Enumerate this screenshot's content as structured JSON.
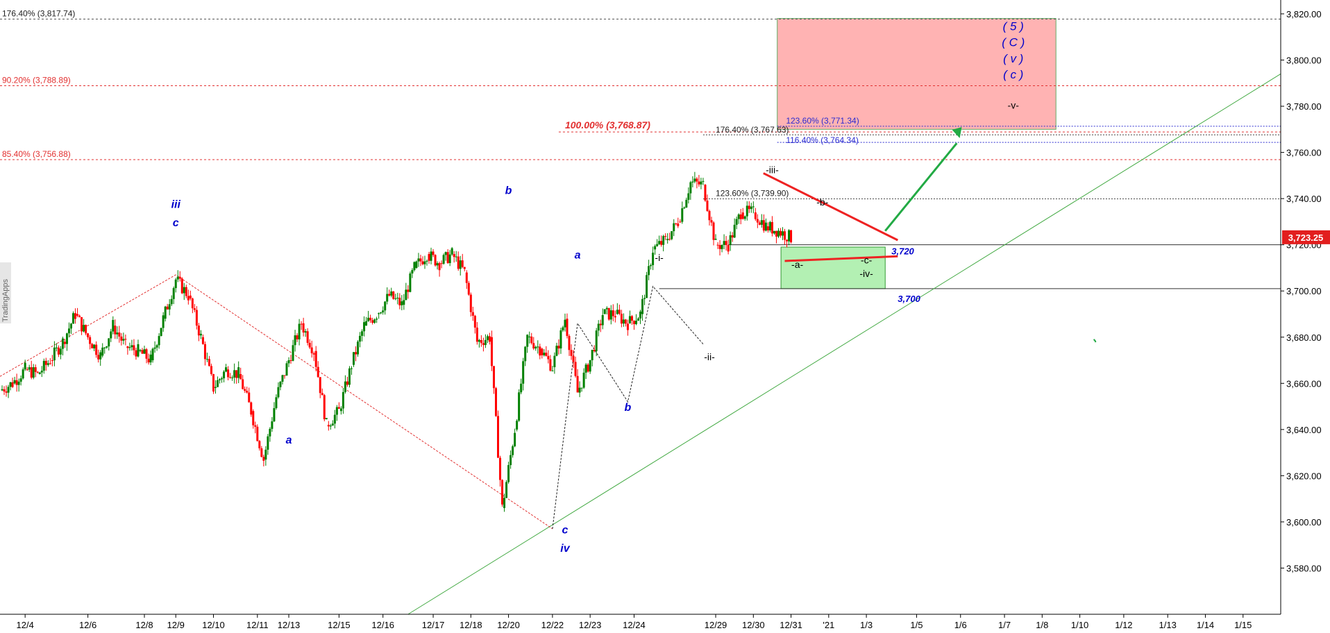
{
  "chart_data": {
    "type": "candlestick",
    "title": "",
    "xlabel": "",
    "ylabel": "",
    "ylim": [
      3560,
      3826
    ],
    "y_ticks": [
      "3,580.00",
      "3,600.00",
      "3,620.00",
      "3,640.00",
      "3,660.00",
      "3,680.00",
      "3,700.00",
      "3,720.00",
      "3,740.00",
      "3,760.00",
      "3,780.00",
      "3,800.00",
      "3,820.00"
    ],
    "y_tick_values": [
      3580,
      3600,
      3620,
      3640,
      3660,
      3680,
      3700,
      3720,
      3740,
      3760,
      3780,
      3800,
      3820
    ],
    "x_ticks": [
      "12/4",
      "12/6",
      "12/8",
      "12/9",
      "12/10",
      "12/11",
      "12/13",
      "12/15",
      "12/16",
      "12/17",
      "12/18",
      "12/20",
      "12/22",
      "12/23",
      "12/24",
      "12/29",
      "12/30",
      "12/31",
      "'21",
      "1/3",
      "1/5",
      "1/6",
      "1/7",
      "1/8",
      "1/10",
      "1/12",
      "1/13",
      "1/14",
      "1/15"
    ],
    "x_tick_slots": [
      2,
      7,
      11.5,
      14,
      17,
      20.5,
      23,
      27,
      30.5,
      34.5,
      37.5,
      40.5,
      44,
      47,
      50.5,
      57,
      60,
      63,
      66,
      69,
      73,
      76.5,
      80,
      83,
      86,
      89.5,
      93,
      96,
      99
    ],
    "x_max": 102,
    "price_path": [
      [
        0,
        3657
      ],
      [
        1,
        3660
      ],
      [
        2,
        3666
      ],
      [
        3,
        3664
      ],
      [
        4,
        3670
      ],
      [
        5,
        3678
      ],
      [
        6,
        3690
      ],
      [
        7,
        3680
      ],
      [
        8,
        3672
      ],
      [
        9,
        3685
      ],
      [
        10,
        3676
      ],
      [
        11,
        3674
      ],
      [
        12,
        3670
      ],
      [
        13,
        3688
      ],
      [
        14,
        3705
      ],
      [
        15,
        3698
      ],
      [
        16,
        3680
      ],
      [
        17,
        3658
      ],
      [
        18,
        3666
      ],
      [
        19,
        3664
      ],
      [
        20,
        3648
      ],
      [
        21,
        3627
      ],
      [
        22,
        3654
      ],
      [
        23,
        3670
      ],
      [
        24,
        3686
      ],
      [
        25,
        3674
      ],
      [
        26,
        3642
      ],
      [
        27,
        3648
      ],
      [
        28,
        3668
      ],
      [
        29,
        3685
      ],
      [
        30,
        3690
      ],
      [
        31,
        3698
      ],
      [
        32,
        3694
      ],
      [
        33,
        3710
      ],
      [
        34,
        3716
      ],
      [
        35,
        3712
      ],
      [
        36,
        3716
      ],
      [
        37,
        3708
      ],
      [
        38,
        3678
      ],
      [
        39,
        3680
      ],
      [
        40,
        3606
      ],
      [
        41,
        3640
      ],
      [
        42,
        3680
      ],
      [
        43,
        3675
      ],
      [
        44,
        3667
      ],
      [
        45,
        3688
      ],
      [
        46,
        3656
      ],
      [
        47,
        3670
      ],
      [
        48,
        3690
      ],
      [
        49,
        3690
      ],
      [
        50,
        3686
      ],
      [
        51,
        3690
      ],
      [
        52,
        3718
      ],
      [
        53,
        3722
      ],
      [
        54,
        3730
      ],
      [
        55,
        3747
      ],
      [
        56,
        3746
      ],
      [
        57,
        3720
      ],
      [
        58,
        3720
      ],
      [
        59,
        3734
      ],
      [
        60,
        3734
      ],
      [
        61,
        3728
      ],
      [
        62,
        3726
      ],
      [
        63,
        3723
      ]
    ],
    "current_price": "3,723.25",
    "annotations": {
      "fib_left": [
        {
          "label": "176.40% (3,817.74)",
          "value": 3817.74
        },
        {
          "label": "90.20% (3,788.89)",
          "value": 3788.89
        },
        {
          "label": "85.40% (3,756.88)",
          "value": 3756.88
        }
      ],
      "fib_mid": [
        {
          "label": "100.00% (3,768.87)",
          "value": 3768.87
        },
        {
          "label": "176.40% (3,767.63)",
          "value": 3767.63
        },
        {
          "label": "123.60% (3,739.90)",
          "value": 3739.9
        }
      ],
      "fib_box": [
        {
          "label": "123.60% (3,771.34)",
          "value": 3771.34
        },
        {
          "label": "116.40% (3,764.34)",
          "value": 3764.34
        }
      ],
      "level_labels": [
        {
          "label": "3,720",
          "value": 3720
        },
        {
          "label": "3,700",
          "value": 3700
        }
      ],
      "target_labels": [
        "( 5 )",
        "( C )",
        "( v )",
        "( c )",
        "-v-"
      ],
      "waves_blue": [
        {
          "t": "iii",
          "s": 14,
          "v": 3736
        },
        {
          "t": "c",
          "s": 14,
          "v": 3728
        },
        {
          "t": "a",
          "s": 23,
          "v": 3634
        },
        {
          "t": "b",
          "s": 40.5,
          "v": 3742
        },
        {
          "t": "a",
          "s": 46,
          "v": 3714
        },
        {
          "t": "b",
          "s": 50,
          "v": 3648
        },
        {
          "t": "c",
          "s": 45,
          "v": 3595
        },
        {
          "t": "iv",
          "s": 45,
          "v": 3587
        }
      ],
      "waves_black": [
        {
          "t": "-i-",
          "s": 52.5,
          "v": 3713
        },
        {
          "t": "-ii-",
          "s": 56.5,
          "v": 3670
        },
        {
          "t": "-iii-",
          "s": 61.5,
          "v": 3751
        },
        {
          "t": "-b-",
          "s": 65.5,
          "v": 3737
        },
        {
          "t": "-a-",
          "s": 63.5,
          "v": 3710
        },
        {
          "t": "-c-",
          "s": 69,
          "v": 3712
        },
        {
          "t": "-iv-",
          "s": 69,
          "v": 3706
        }
      ]
    },
    "colors": {
      "up": "#008000",
      "down": "#ff0000",
      "wave": "#0000cc",
      "target_zone": "#ffb3b3",
      "support_zone": "#b3f0b3",
      "trend": "#22aa44"
    }
  },
  "watermark": "TradingApps"
}
